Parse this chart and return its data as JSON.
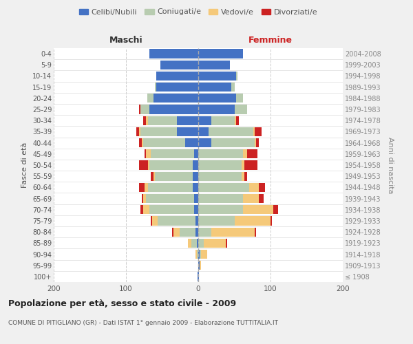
{
  "age_groups": [
    "100+",
    "95-99",
    "90-94",
    "85-89",
    "80-84",
    "75-79",
    "70-74",
    "65-69",
    "60-64",
    "55-59",
    "50-54",
    "45-49",
    "40-44",
    "35-39",
    "30-34",
    "25-29",
    "20-24",
    "15-19",
    "10-14",
    "5-9",
    "0-4"
  ],
  "birth_years": [
    "≤ 1908",
    "1909-1913",
    "1914-1918",
    "1919-1923",
    "1924-1928",
    "1929-1933",
    "1934-1938",
    "1939-1943",
    "1944-1948",
    "1949-1953",
    "1954-1958",
    "1959-1963",
    "1964-1968",
    "1969-1973",
    "1974-1978",
    "1979-1983",
    "1984-1988",
    "1989-1993",
    "1994-1998",
    "1999-2003",
    "2004-2008"
  ],
  "colors": {
    "celibi": "#4472C4",
    "coniugati": "#B8CCB0",
    "vedovi": "#F5C97A",
    "divorziati": "#CC2222"
  },
  "males": {
    "celibi": [
      1,
      0,
      0,
      2,
      4,
      4,
      6,
      6,
      8,
      8,
      8,
      6,
      18,
      30,
      30,
      68,
      62,
      58,
      58,
      52,
      68
    ],
    "coniugati": [
      0,
      0,
      2,
      8,
      22,
      52,
      62,
      66,
      62,
      52,
      60,
      60,
      58,
      50,
      40,
      12,
      8,
      2,
      0,
      0,
      0
    ],
    "vedovi": [
      0,
      0,
      2,
      4,
      8,
      8,
      8,
      4,
      4,
      2,
      2,
      6,
      2,
      2,
      2,
      0,
      0,
      0,
      0,
      0,
      0
    ],
    "divorziati": [
      0,
      0,
      0,
      0,
      2,
      2,
      4,
      2,
      8,
      4,
      12,
      2,
      4,
      4,
      4,
      2,
      0,
      0,
      0,
      0,
      0
    ]
  },
  "females": {
    "celibi": [
      1,
      2,
      2,
      0,
      0,
      0,
      0,
      0,
      0,
      0,
      0,
      0,
      18,
      14,
      18,
      50,
      52,
      46,
      52,
      44,
      62
    ],
    "coniugati": [
      0,
      0,
      2,
      8,
      18,
      50,
      62,
      62,
      70,
      60,
      60,
      62,
      60,
      62,
      32,
      18,
      10,
      4,
      2,
      0,
      0
    ],
    "vedovi": [
      0,
      2,
      8,
      30,
      60,
      50,
      42,
      22,
      14,
      4,
      4,
      6,
      2,
      2,
      2,
      0,
      0,
      0,
      0,
      0,
      0
    ],
    "divorziati": [
      0,
      0,
      0,
      2,
      2,
      2,
      6,
      6,
      8,
      4,
      18,
      14,
      4,
      10,
      4,
      0,
      0,
      0,
      0,
      0,
      0
    ]
  },
  "title": "Popolazione per età, sesso e stato civile - 2009",
  "subtitle": "COMUNE DI PITIGLIANO (GR) - Dati ISTAT 1° gennaio 2009 - Elaborazione TUTTITALIA.IT",
  "xlabel_left": "Maschi",
  "xlabel_right": "Femmine",
  "ylabel_left": "Fasce di età",
  "ylabel_right": "Anni di nascita",
  "xlim": 200,
  "legend_labels": [
    "Celibi/Nubili",
    "Coniugati/e",
    "Vedovi/e",
    "Divorziati/e"
  ],
  "bg_color": "#F0F0F0",
  "plot_bg": "#FFFFFF"
}
